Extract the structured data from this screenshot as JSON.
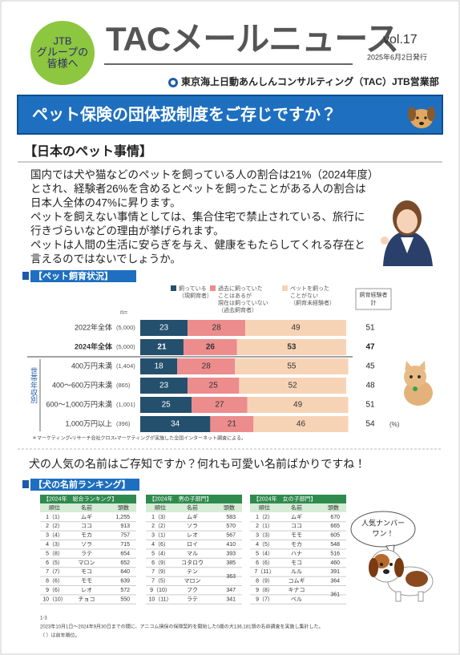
{
  "header": {
    "badge": [
      "JTB",
      "グループの",
      "皆様へ"
    ],
    "title": "TACメールニュース",
    "volume": "vol.17",
    "date": "2025年6月2日発行",
    "company": "東京海上日動あんしんコンサルティング（TAC）JTB営業部"
  },
  "banner": "ペット保険の団体扱制度をご存じですか？",
  "section1": {
    "heading": "【日本のペット事情】",
    "paragraph": [
      "国内では犬や猫などのペットを飼っている人の割合は21%（2024年度）",
      "とされ、経験者26%を含めるとペットを飼ったことがある人の割合は",
      "日本人全体の47%に昇ります。",
      "ペットを飼えない事情としては、集合住宅で禁止されている、旅行に",
      "行きづらいなどの理由が挙げられます。",
      "ペットは人間の生活に安らぎを与え、健康をもたらしてくれる存在と",
      "言えるのではないでしょうか。"
    ]
  },
  "survey": {
    "label": "【ペット飼育状況】",
    "legend": [
      [
        "飼っている",
        "（現飼育者）"
      ],
      [
        "過去に飼っていた",
        "ことはあるが",
        "現在は飼っていない",
        "（過去飼育者）"
      ],
      [
        "ペットを飼った",
        "ことがない",
        "（飼育未経験者）"
      ]
    ],
    "colors": [
      "#24506e",
      "#ec8c8c",
      "#f7d3b6"
    ],
    "total_header": [
      "飼育経験者",
      "計"
    ],
    "n_label": "n=",
    "group_label": "世帯年収別",
    "unit": "(%)",
    "rows": [
      {
        "label": "2022年全体",
        "n": "(5,000)",
        "values": [
          23,
          28,
          49
        ],
        "total": 51,
        "bold": false
      },
      {
        "label": "2024年全体",
        "n": "(5,000)",
        "values": [
          21,
          26,
          53
        ],
        "total": 47,
        "bold": true
      },
      {
        "label": "400万円未満",
        "n": "(1,404)",
        "values": [
          18,
          28,
          55
        ],
        "total": 45,
        "bold": false
      },
      {
        "label": "400～600万円未満",
        "n": "(865)",
        "values": [
          23,
          25,
          52
        ],
        "total": 48,
        "bold": false
      },
      {
        "label": "600～1,000万円未満",
        "n": "(1,001)",
        "values": [
          25,
          27,
          49
        ],
        "total": 51,
        "bold": false
      },
      {
        "label": "1,000万円以上",
        "n": "(396)",
        "values": [
          34,
          21,
          46
        ],
        "total": 54,
        "bold": false
      }
    ],
    "note": "＊マーケティング・リサーチ会社クロス・マーケティングが実施した全国インターネット調査による。"
  },
  "names": {
    "intro": "犬の人気の名前はご存知ですか？何れも可愛い名前ばかりですね！",
    "label": "【犬の名前ランキング】",
    "tables": [
      {
        "title": "【2024年　総合ランキング】",
        "columns": [
          "順位",
          "名前",
          "頭数"
        ],
        "rows": [
          [
            "1（1）",
            "ムギ",
            "1,255"
          ],
          [
            "2（2）",
            "ココ",
            "913"
          ],
          [
            "3（4）",
            "モカ",
            "757"
          ],
          [
            "4（3）",
            "ソラ",
            "715"
          ],
          [
            "5（8）",
            "ラテ",
            "654"
          ],
          [
            "6（5）",
            "マロン",
            "652"
          ],
          [
            "7（7）",
            "モコ",
            "640"
          ],
          [
            "8（6）",
            "モモ",
            "639"
          ],
          [
            "9（6）",
            "レオ",
            "572"
          ],
          [
            "10（10）",
            "チョコ",
            "550"
          ]
        ]
      },
      {
        "title": "【2024年　男の子部門】",
        "columns": [
          "順位",
          "名前",
          "頭数"
        ],
        "rows": [
          [
            "1（3）",
            "ムギ",
            "583"
          ],
          [
            "2（2）",
            "ソラ",
            "570"
          ],
          [
            "3（1）",
            "レオ",
            "567"
          ],
          [
            "4（6）",
            "ロイ",
            "410"
          ],
          [
            "5（4）",
            "マル",
            "393"
          ],
          [
            "6（9）",
            "コタロウ",
            "385"
          ],
          [
            "7（9）",
            "テン",
            "363"
          ],
          [
            "7（5）",
            "マロン",
            null
          ],
          [
            "9（10）",
            "フク",
            "347"
          ],
          [
            "10（11）",
            "ラテ",
            "341"
          ]
        ]
      },
      {
        "title": "【2024年　女の子部門】",
        "columns": [
          "順位",
          "名前",
          "頭数"
        ],
        "rows": [
          [
            "1（2）",
            "ムギ",
            "670"
          ],
          [
            "2（1）",
            "ココ",
            "665"
          ],
          [
            "3（3）",
            "モモ",
            "605"
          ],
          [
            "4（5）",
            "モカ",
            "548"
          ],
          [
            "5（4）",
            "ハナ",
            "516"
          ],
          [
            "6（6）",
            "モコ",
            "460"
          ],
          [
            "7（11）",
            "ルル",
            "391"
          ],
          [
            "8（9）",
            "コムギ",
            "364"
          ],
          [
            "9（8）",
            "キナコ",
            "361"
          ],
          [
            "9（7）",
            "ベル",
            null
          ]
        ]
      }
    ],
    "bubble": [
      "人気ナンバー",
      "ワン！"
    ],
    "notes": [
      "1-3",
      "2023年10月1日～2024年9月30日までの間に、アニコム損保の保険契約を開始した0歳の犬136,181頭の名前調査を実施し集計した。",
      "（ ）は前年順位。"
    ]
  }
}
